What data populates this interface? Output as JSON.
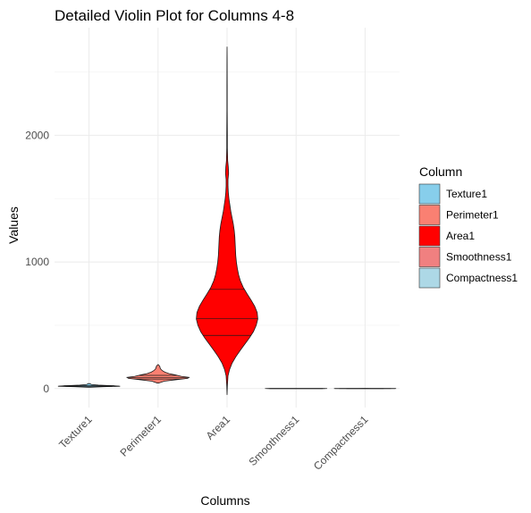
{
  "chart_data": {
    "type": "violin",
    "title": "Detailed Violin Plot for Columns 4-8",
    "xlabel": "Columns",
    "ylabel": "Values",
    "categories": [
      "Texture1",
      "Perimeter1",
      "Area1",
      "Smoothness1",
      "Compactness1"
    ],
    "y_ticks": [
      0,
      1000,
      2000
    ],
    "ylim": [
      -150,
      2850
    ],
    "grid": true,
    "legend": {
      "title": "Column",
      "position": "right",
      "entries": [
        {
          "label": "Texture1",
          "color": "#87ceeb"
        },
        {
          "label": "Perimeter1",
          "color": "#fa8072"
        },
        {
          "label": "Area1",
          "color": "#ff0000"
        },
        {
          "label": "Smoothness1",
          "color": "#f08080"
        },
        {
          "label": "Compactness1",
          "color": "#add8e6"
        }
      ]
    },
    "series": [
      {
        "name": "Texture1",
        "quantiles": [
          16.2,
          18.8,
          21.8
        ],
        "density": [
          [
            9.7,
            0.03
          ],
          [
            14,
            0.45
          ],
          [
            18,
            1.0
          ],
          [
            22,
            0.8
          ],
          [
            27,
            0.3
          ],
          [
            32,
            0.08
          ],
          [
            39.3,
            0.02
          ]
        ]
      },
      {
        "name": "Perimeter1",
        "quantiles": [
          75.2,
          86.2,
          104.1
        ],
        "density": [
          [
            43.8,
            0.03
          ],
          [
            58,
            0.2
          ],
          [
            70,
            0.6
          ],
          [
            80,
            0.95
          ],
          [
            88,
            1.0
          ],
          [
            96,
            0.75
          ],
          [
            108,
            0.55
          ],
          [
            118,
            0.35
          ],
          [
            130,
            0.22
          ],
          [
            140,
            0.15
          ],
          [
            150,
            0.1
          ],
          [
            160,
            0.07
          ],
          [
            172,
            0.06
          ],
          [
            180,
            0.04
          ],
          [
            188.5,
            0.01
          ]
        ]
      },
      {
        "name": "Area1",
        "quantiles": [
          420,
          551,
          783
        ],
        "density": [
          [
            -50,
            0.0
          ],
          [
            20,
            0.01
          ],
          [
            100,
            0.03
          ],
          [
            150,
            0.08
          ],
          [
            200,
            0.16
          ],
          [
            250,
            0.28
          ],
          [
            300,
            0.42
          ],
          [
            350,
            0.57
          ],
          [
            400,
            0.72
          ],
          [
            450,
            0.85
          ],
          [
            500,
            0.94
          ],
          [
            550,
            0.99
          ],
          [
            600,
            0.97
          ],
          [
            650,
            0.89
          ],
          [
            700,
            0.77
          ],
          [
            750,
            0.64
          ],
          [
            800,
            0.52
          ],
          [
            850,
            0.43
          ],
          [
            900,
            0.37
          ],
          [
            950,
            0.33
          ],
          [
            1000,
            0.3
          ],
          [
            1050,
            0.28
          ],
          [
            1100,
            0.27
          ],
          [
            1150,
            0.26
          ],
          [
            1200,
            0.25
          ],
          [
            1250,
            0.23
          ],
          [
            1300,
            0.2
          ],
          [
            1350,
            0.16
          ],
          [
            1400,
            0.12
          ],
          [
            1450,
            0.09
          ],
          [
            1500,
            0.06
          ],
          [
            1550,
            0.04
          ],
          [
            1600,
            0.03
          ],
          [
            1650,
            0.03
          ],
          [
            1700,
            0.05
          ],
          [
            1750,
            0.04
          ],
          [
            1800,
            0.02
          ],
          [
            1900,
            0.01
          ],
          [
            2000,
            0.01
          ],
          [
            2200,
            0.005
          ],
          [
            2400,
            0.005
          ],
          [
            2600,
            0.003
          ],
          [
            2700,
            0.0
          ]
        ]
      },
      {
        "name": "Smoothness1",
        "quantiles": [
          0.086,
          0.096,
          0.105
        ],
        "density": [
          [
            0.05,
            0.05
          ],
          [
            0.07,
            0.4
          ],
          [
            0.09,
            1.0
          ],
          [
            0.11,
            0.8
          ],
          [
            0.13,
            0.25
          ],
          [
            0.163,
            0.02
          ]
        ]
      },
      {
        "name": "Compactness1",
        "quantiles": [
          0.065,
          0.093,
          0.13
        ],
        "density": [
          [
            0.019,
            0.1
          ],
          [
            0.06,
            0.8
          ],
          [
            0.09,
            1.0
          ],
          [
            0.13,
            0.6
          ],
          [
            0.2,
            0.2
          ],
          [
            0.345,
            0.02
          ]
        ]
      }
    ]
  }
}
